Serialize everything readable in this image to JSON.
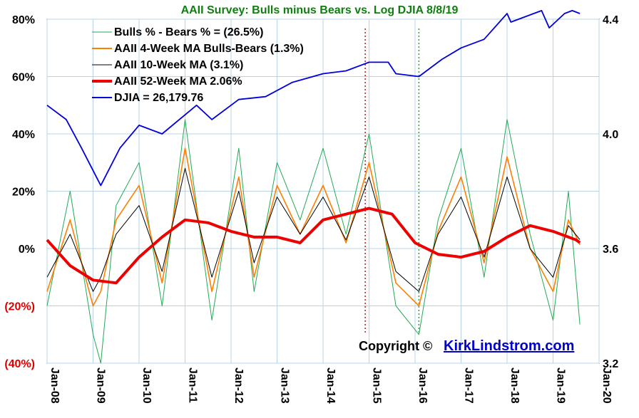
{
  "chart_data": {
    "type": "line",
    "title": "AAII Survey: Bulls minus Bears vs. Log DJIA  8/8/19",
    "left_axis": {
      "ticks": [
        {
          "value": 80,
          "label": "80%"
        },
        {
          "value": 60,
          "label": "60%"
        },
        {
          "value": 40,
          "label": "40%"
        },
        {
          "value": 20,
          "label": "20%"
        },
        {
          "value": 0,
          "label": "0%"
        },
        {
          "value": -20,
          "label": "(20%)"
        },
        {
          "value": -40,
          "label": "(40%)"
        }
      ],
      "range": [
        -40,
        80
      ]
    },
    "right_axis": {
      "ticks": [
        {
          "value": 4.4,
          "label": "4.4"
        },
        {
          "value": 4.0,
          "label": "4.0"
        },
        {
          "value": 3.6,
          "label": "3.6"
        },
        {
          "value": 3.2,
          "label": "3.2"
        }
      ],
      "range": [
        3.2,
        4.4
      ],
      "scale": "log10 of DJIA"
    },
    "x_axis": {
      "ticks": [
        "Jan-08",
        "Jan-09",
        "Jan-10",
        "Jan-11",
        "Jan-12",
        "Jan-13",
        "Jan-14",
        "Jan-15",
        "Jan-16",
        "Jan-17",
        "Jan-18",
        "Jan-19",
        "Jan-20"
      ],
      "range": [
        "2008-01",
        "2020-01"
      ],
      "label_rotation": "vertical"
    },
    "grid": true,
    "legend_position": "top-left",
    "series": [
      {
        "name": "Bulls % - Bears % = (26.5%)",
        "color": "#22aa55",
        "axis": "left",
        "x": [
          "2008-01",
          "2008-07",
          "2009-01",
          "2009-03",
          "2009-07",
          "2010-01",
          "2010-07",
          "2011-01",
          "2011-08",
          "2012-03",
          "2012-07",
          "2013-01",
          "2013-07",
          "2014-01",
          "2014-07",
          "2015-01",
          "2015-08",
          "2016-02",
          "2016-07",
          "2017-01",
          "2017-07",
          "2018-01",
          "2018-07",
          "2019-01",
          "2019-05",
          "2019-08"
        ],
        "y": [
          -20,
          20,
          -30,
          -40,
          15,
          30,
          -20,
          45,
          -25,
          35,
          -15,
          30,
          10,
          35,
          5,
          40,
          -20,
          -30,
          10,
          35,
          -10,
          45,
          5,
          -25,
          20,
          -26.5
        ]
      },
      {
        "name": "AAII 4-Week MA Bulls-Bears (1.3%)",
        "color": "#ff7f00",
        "axis": "left",
        "x": [
          "2008-01",
          "2008-07",
          "2009-01",
          "2009-03",
          "2009-07",
          "2010-01",
          "2010-07",
          "2011-01",
          "2011-08",
          "2012-03",
          "2012-07",
          "2013-01",
          "2013-07",
          "2014-01",
          "2014-07",
          "2015-01",
          "2015-08",
          "2016-02",
          "2016-07",
          "2017-01",
          "2017-07",
          "2018-01",
          "2018-07",
          "2019-01",
          "2019-05",
          "2019-08"
        ],
        "y": [
          -15,
          10,
          -20,
          -15,
          10,
          22,
          -12,
          35,
          -15,
          25,
          -10,
          22,
          5,
          22,
          2,
          30,
          -12,
          -20,
          6,
          25,
          -5,
          32,
          0,
          -15,
          10,
          1.3
        ]
      },
      {
        "name": "AAII 10-Week MA (3.1%)",
        "color": "#000000",
        "axis": "left",
        "x": [
          "2008-01",
          "2008-07",
          "2009-01",
          "2009-03",
          "2009-07",
          "2010-01",
          "2010-07",
          "2011-01",
          "2011-08",
          "2012-03",
          "2012-07",
          "2013-01",
          "2013-07",
          "2014-01",
          "2014-07",
          "2015-01",
          "2015-08",
          "2016-02",
          "2016-07",
          "2017-01",
          "2017-07",
          "2018-01",
          "2018-07",
          "2019-01",
          "2019-05",
          "2019-08"
        ],
        "y": [
          -10,
          5,
          -15,
          -10,
          5,
          15,
          -8,
          28,
          -10,
          20,
          -5,
          18,
          5,
          18,
          3,
          25,
          -8,
          -15,
          5,
          18,
          -3,
          25,
          0,
          -10,
          8,
          3.1
        ]
      },
      {
        "name": "AAII 52-Week MA 2.06%",
        "color": "#ee0000",
        "axis": "left",
        "x": [
          "2008-01",
          "2008-07",
          "2009-01",
          "2009-07",
          "2010-01",
          "2010-07",
          "2011-01",
          "2011-07",
          "2012-01",
          "2012-07",
          "2013-01",
          "2013-07",
          "2014-01",
          "2014-07",
          "2015-01",
          "2015-07",
          "2016-01",
          "2016-07",
          "2017-01",
          "2017-07",
          "2018-01",
          "2018-07",
          "2019-01",
          "2019-07",
          "2019-08"
        ],
        "y": [
          3,
          -6,
          -11,
          -12,
          -3,
          4,
          10,
          9,
          6,
          4,
          4,
          2,
          10,
          12,
          14,
          12,
          2,
          -2,
          -3,
          -1,
          4,
          8,
          6,
          3,
          2.06
        ]
      },
      {
        "name": "DJIA =  26,179.76",
        "color": "#0000dd",
        "axis": "right",
        "x": [
          "2008-01",
          "2008-06",
          "2008-10",
          "2009-03",
          "2009-08",
          "2010-01",
          "2010-07",
          "2011-04",
          "2011-08",
          "2012-03",
          "2012-10",
          "2013-05",
          "2014-01",
          "2014-07",
          "2015-01",
          "2015-06",
          "2015-08",
          "2016-02",
          "2016-08",
          "2017-01",
          "2017-07",
          "2018-01",
          "2018-02",
          "2018-10",
          "2018-12",
          "2019-04",
          "2019-06",
          "2019-08"
        ],
        "y": [
          4.1,
          4.05,
          3.95,
          3.82,
          3.95,
          4.03,
          4.0,
          4.1,
          4.05,
          4.12,
          4.13,
          4.18,
          4.21,
          4.22,
          4.25,
          4.25,
          4.21,
          4.2,
          4.26,
          4.3,
          4.33,
          4.42,
          4.39,
          4.43,
          4.37,
          4.42,
          4.43,
          4.42
        ]
      }
    ],
    "annotations": [
      {
        "type": "vertical-dashed-line",
        "x": "2014-12",
        "color": "#aa2222"
      },
      {
        "type": "vertical-dashed-line",
        "x": "2016-02",
        "color": "#22aa22"
      }
    ],
    "copyright_label": "Copyright ©",
    "copyright_link": "KirkLindstrom.com"
  }
}
